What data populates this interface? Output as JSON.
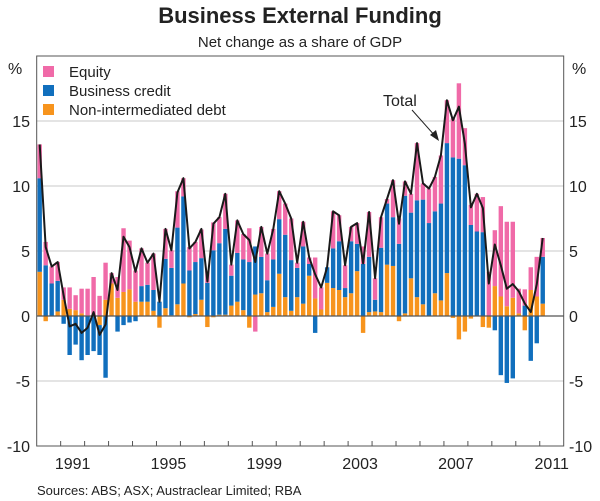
{
  "chart_data": {
    "type": "bar",
    "stacked": true,
    "title": "Business External Funding",
    "subtitle": "Net change as a share of GDP",
    "ylabel_left": "%",
    "ylabel_right": "%",
    "ylim": [
      -10,
      20
    ],
    "yticks": [
      -10,
      -5,
      0,
      5,
      10,
      15
    ],
    "ytick_labels": [
      "-10",
      "-5",
      "0",
      "5",
      "10",
      "15"
    ],
    "xlim": [
      "1990",
      "2011"
    ],
    "xtick_labels": [
      "1991",
      "1995",
      "1999",
      "2003",
      "2007",
      "2011"
    ],
    "start_period": "1990 Q1",
    "frequency": "quarterly",
    "grid": true,
    "legend_position": "top-left",
    "source": "Sources: ABS; ASX; Austraclear Limited; RBA",
    "annotation": "Total",
    "colors": {
      "equity": "#f06aa8",
      "business_credit": "#116fbd",
      "non_intermediated_debt": "#f7941d",
      "total": "#1a1a1a"
    },
    "series": [
      {
        "name": "Equity",
        "key": "equity",
        "values": [
          2.6,
          1.8,
          1.3,
          1.45,
          0.95,
          1.65,
          1.15,
          1.9,
          2.05,
          3.0,
          1.55,
          2.85,
          0.8,
          1.6,
          4.9,
          3.75,
          2.4,
          2.9,
          1.7,
          2.8,
          0,
          2.3,
          1.35,
          2.8,
          1.4,
          1.8,
          1.55,
          2.2,
          0.95,
          2.15,
          2.0,
          2.7,
          0.85,
          2.5,
          1.95,
          2.6,
          -1.2,
          2.3,
          2.05,
          2.35,
          2.15,
          2.4,
          3.2,
          0.4,
          1.9,
          0.5,
          3.15,
          1.7,
          0,
          2.85,
          2.0,
          1.75,
          1.1,
          1.6,
          1.35,
          3.45,
          1.65,
          2.35,
          0.35,
          2.85,
          1.95,
          1.1,
          1.45,
          4.4,
          1.25,
          2.65,
          2.65,
          3.7,
          3.3,
          3.0,
          5.8,
          2.85,
          1.55,
          2.9,
          2.7,
          3.4,
          4.3,
          6.95,
          6.5,
          5.85,
          1.9,
          1.25,
          1.75,
          3.05,
          1.45
        ]
      },
      {
        "name": "Business credit",
        "key": "business_credit",
        "values": [
          7.2,
          3.9,
          2.5,
          2.35,
          -0.6,
          -3.0,
          -2.2,
          -3.4,
          -3.0,
          -2.7,
          -2.3,
          -4.75,
          0,
          -1.2,
          -0.7,
          -0.5,
          -0.4,
          1.2,
          1.3,
          1.6,
          1.1,
          3.8,
          3.65,
          5.9,
          6.7,
          3.5,
          4.0,
          3.2,
          2.55,
          5.05,
          5.5,
          6.6,
          2.3,
          3.75,
          3.9,
          4.15,
          3.7,
          2.8,
          2.45,
          3.65,
          4.2,
          4.8,
          3.9,
          2.25,
          4.4,
          0.9,
          -1.3,
          0,
          1.2,
          3.05,
          3.75,
          0.7,
          4.0,
          2.1,
          4.0,
          4.25,
          0.9,
          4.95,
          4.7,
          3.75,
          5.55,
          9.05,
          5.05,
          7.45,
          8.05,
          7.15,
          6.3,
          7.45,
          10.0,
          12.2,
          12.1,
          11.6,
          7.0,
          6.5,
          6.45,
          0,
          -1.1,
          -4.55,
          -5.15,
          -4.8,
          0,
          0.8,
          -3.45,
          -2.1,
          3.6
        ]
      },
      {
        "name": "Non-intermediated debt",
        "key": "non_intermediated_debt",
        "values": [
          3.4,
          -0.4,
          0,
          0.35,
          1.25,
          0.55,
          0.45,
          0.2,
          0.05,
          0,
          -0.7,
          1.25,
          2.5,
          1.4,
          1.85,
          2.05,
          1.1,
          1.1,
          1.1,
          0.4,
          -0.9,
          0.6,
          0.05,
          0.9,
          2.5,
          -0.1,
          0.15,
          1.25,
          -0.85,
          -0.1,
          0.1,
          0.1,
          0.8,
          1.1,
          0.45,
          -0.9,
          1.65,
          1.75,
          0.3,
          0.7,
          3.25,
          1.45,
          0.4,
          1.45,
          0.95,
          3.1,
          1.35,
          0.5,
          2.55,
          2.15,
          2.0,
          1.45,
          1.75,
          3.45,
          -1.3,
          0.3,
          0.35,
          0.3,
          3.95,
          3.85,
          -0.4,
          0.2,
          2.9,
          1.45,
          0.9,
          0,
          1.75,
          1.2,
          3.3,
          -0.15,
          -1.8,
          -1.2,
          -0.2,
          0,
          -0.85,
          -0.9,
          2.3,
          1.5,
          0.75,
          1.4,
          0.2,
          -1.1,
          2.0,
          1.5,
          0.95
        ]
      },
      {
        "name": "Total",
        "key": "total",
        "type": "line",
        "values": [
          13.2,
          5.3,
          3.8,
          4.15,
          1.6,
          -0.8,
          -0.6,
          -1.3,
          -0.9,
          0.3,
          -1.45,
          -0.65,
          3.3,
          2.0,
          6.1,
          5.3,
          3.4,
          5.2,
          4.1,
          4.8,
          1.1,
          6.7,
          5.05,
          9.5,
          10.6,
          5.2,
          5.7,
          6.7,
          2.65,
          7.1,
          7.6,
          9.4,
          3.95,
          7.35,
          6.3,
          5.85,
          4.15,
          6.85,
          4.8,
          6.7,
          9.6,
          8.65,
          7.5,
          4.1,
          7.25,
          4.5,
          3.2,
          2.2,
          3.75,
          8.05,
          7.75,
          3.9,
          6.85,
          7.15,
          4.05,
          8.0,
          2.9,
          7.6,
          9.0,
          10.45,
          7.1,
          10.35,
          9.4,
          13.3,
          10.2,
          9.8,
          10.7,
          12.35,
          16.6,
          15.05,
          16.1,
          13.25,
          8.35,
          9.4,
          8.3,
          2.5,
          5.5,
          3.9,
          2.1,
          2.45,
          1.9,
          0.95,
          0.3,
          2.45,
          6.0
        ]
      }
    ]
  }
}
